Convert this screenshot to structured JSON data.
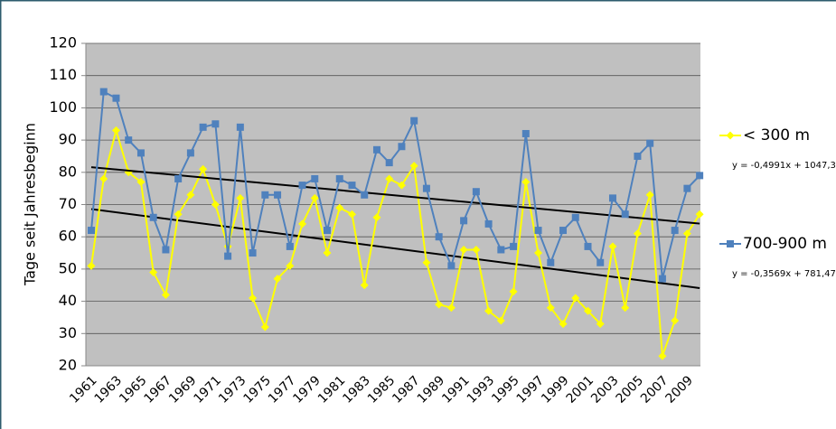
{
  "chart_data": {
    "type": "line",
    "y_label": "Tage seit Jahresbeginn",
    "categories": [
      "1961",
      null,
      "1963",
      null,
      "1965",
      null,
      "1967",
      null,
      "1969",
      null,
      "1971",
      null,
      "1973",
      null,
      "1975",
      null,
      "1977",
      null,
      "1979",
      null,
      "1981",
      null,
      "1983",
      null,
      "1985",
      null,
      "1987",
      null,
      "1989",
      null,
      "1991",
      null,
      "1993",
      null,
      "1995",
      null,
      "1997",
      null,
      "1999",
      null,
      "2001",
      null,
      "2003",
      null,
      "2005",
      null,
      "2007",
      null,
      "2009",
      null
    ],
    "ylim": [
      20,
      120
    ],
    "yticks": [
      20,
      30,
      40,
      50,
      60,
      70,
      80,
      90,
      100,
      110,
      120
    ],
    "grid": true,
    "legend": "right",
    "series": [
      {
        "name": "< 300 m",
        "color": "#ffff00",
        "marker": "diamond",
        "values": [
          51,
          78,
          93,
          80,
          77,
          49,
          42,
          67,
          73,
          81,
          70,
          57,
          72,
          41,
          32,
          47,
          51,
          64,
          72,
          55,
          69,
          67,
          45,
          66,
          78,
          76,
          82,
          52,
          39,
          38,
          56,
          56,
          37,
          34,
          43,
          77,
          55,
          38,
          33,
          41,
          37,
          33,
          57,
          38,
          61,
          73,
          23,
          34,
          61,
          67
        ],
        "trendline": {
          "label": "y = -0,4991x + 1047,3",
          "start": 68.6,
          "end": 44.1
        }
      },
      {
        "name": "700-900 m",
        "color": "#4f81bd",
        "marker": "square",
        "values": [
          62,
          105,
          103,
          90,
          86,
          66,
          56,
          78,
          86,
          94,
          95,
          54,
          94,
          55,
          73,
          73,
          57,
          76,
          78,
          62,
          78,
          76,
          73,
          87,
          83,
          88,
          96,
          75,
          60,
          51,
          65,
          74,
          64,
          56,
          57,
          92,
          62,
          52,
          62,
          66,
          57,
          52,
          72,
          67,
          85,
          89,
          47,
          62,
          75,
          79
        ],
        "trendline": {
          "label": "y = -0,3569x + 781,47",
          "start": 81.6,
          "end": 64.1
        }
      }
    ]
  }
}
